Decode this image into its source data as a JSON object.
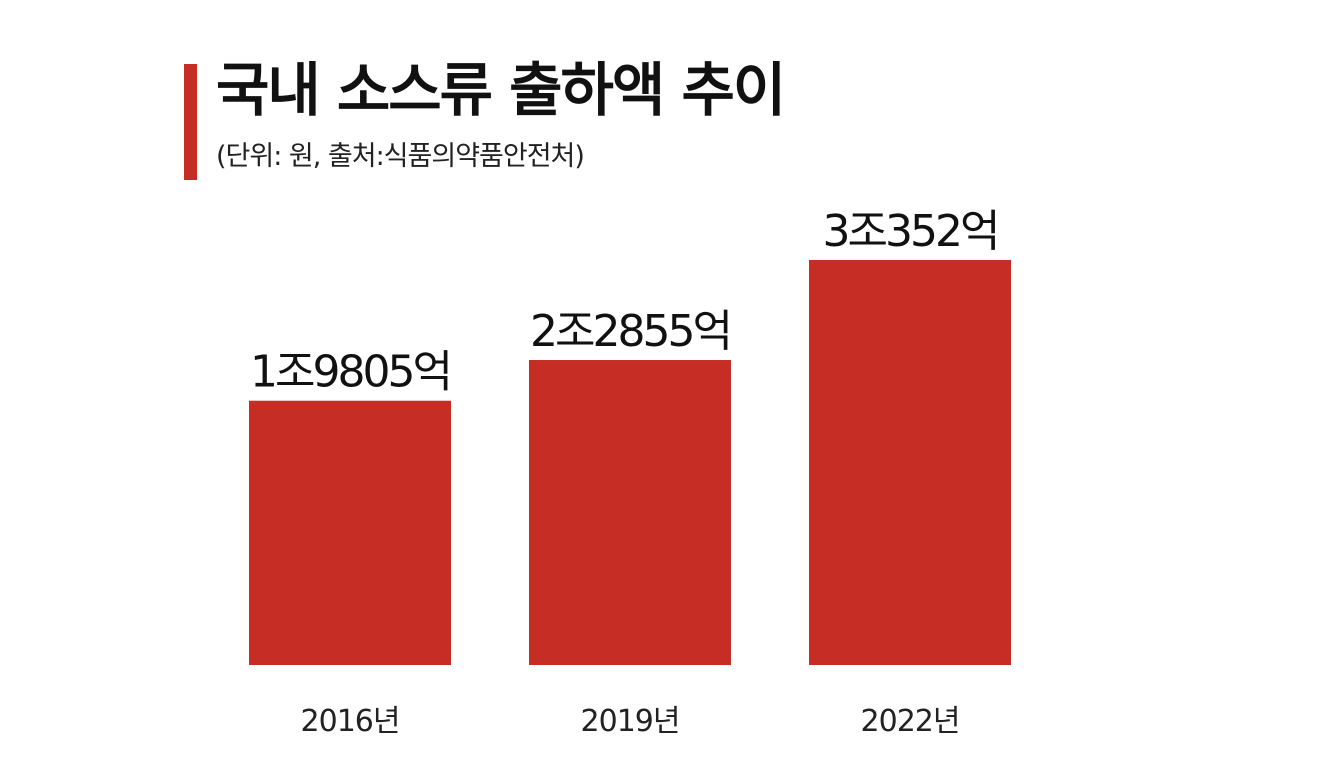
{
  "chart_data": {
    "type": "bar",
    "title": "국내 소스류 출하액 추이",
    "subtitle": "(단위: 원, 출처:식품의약품안전처)",
    "categories": [
      "2016년",
      "2019년",
      "2022년"
    ],
    "values": [
      1980500000000,
      2285500000000,
      3035200000000
    ],
    "data_labels": [
      "1조9805억",
      "2조2855억",
      "3조352억"
    ],
    "ylim": [
      0,
      3050000000000
    ],
    "grid": false,
    "legend": "none"
  },
  "colors": {
    "bar": "#c52d25",
    "accent": "#c52d25",
    "text": "#111111"
  }
}
